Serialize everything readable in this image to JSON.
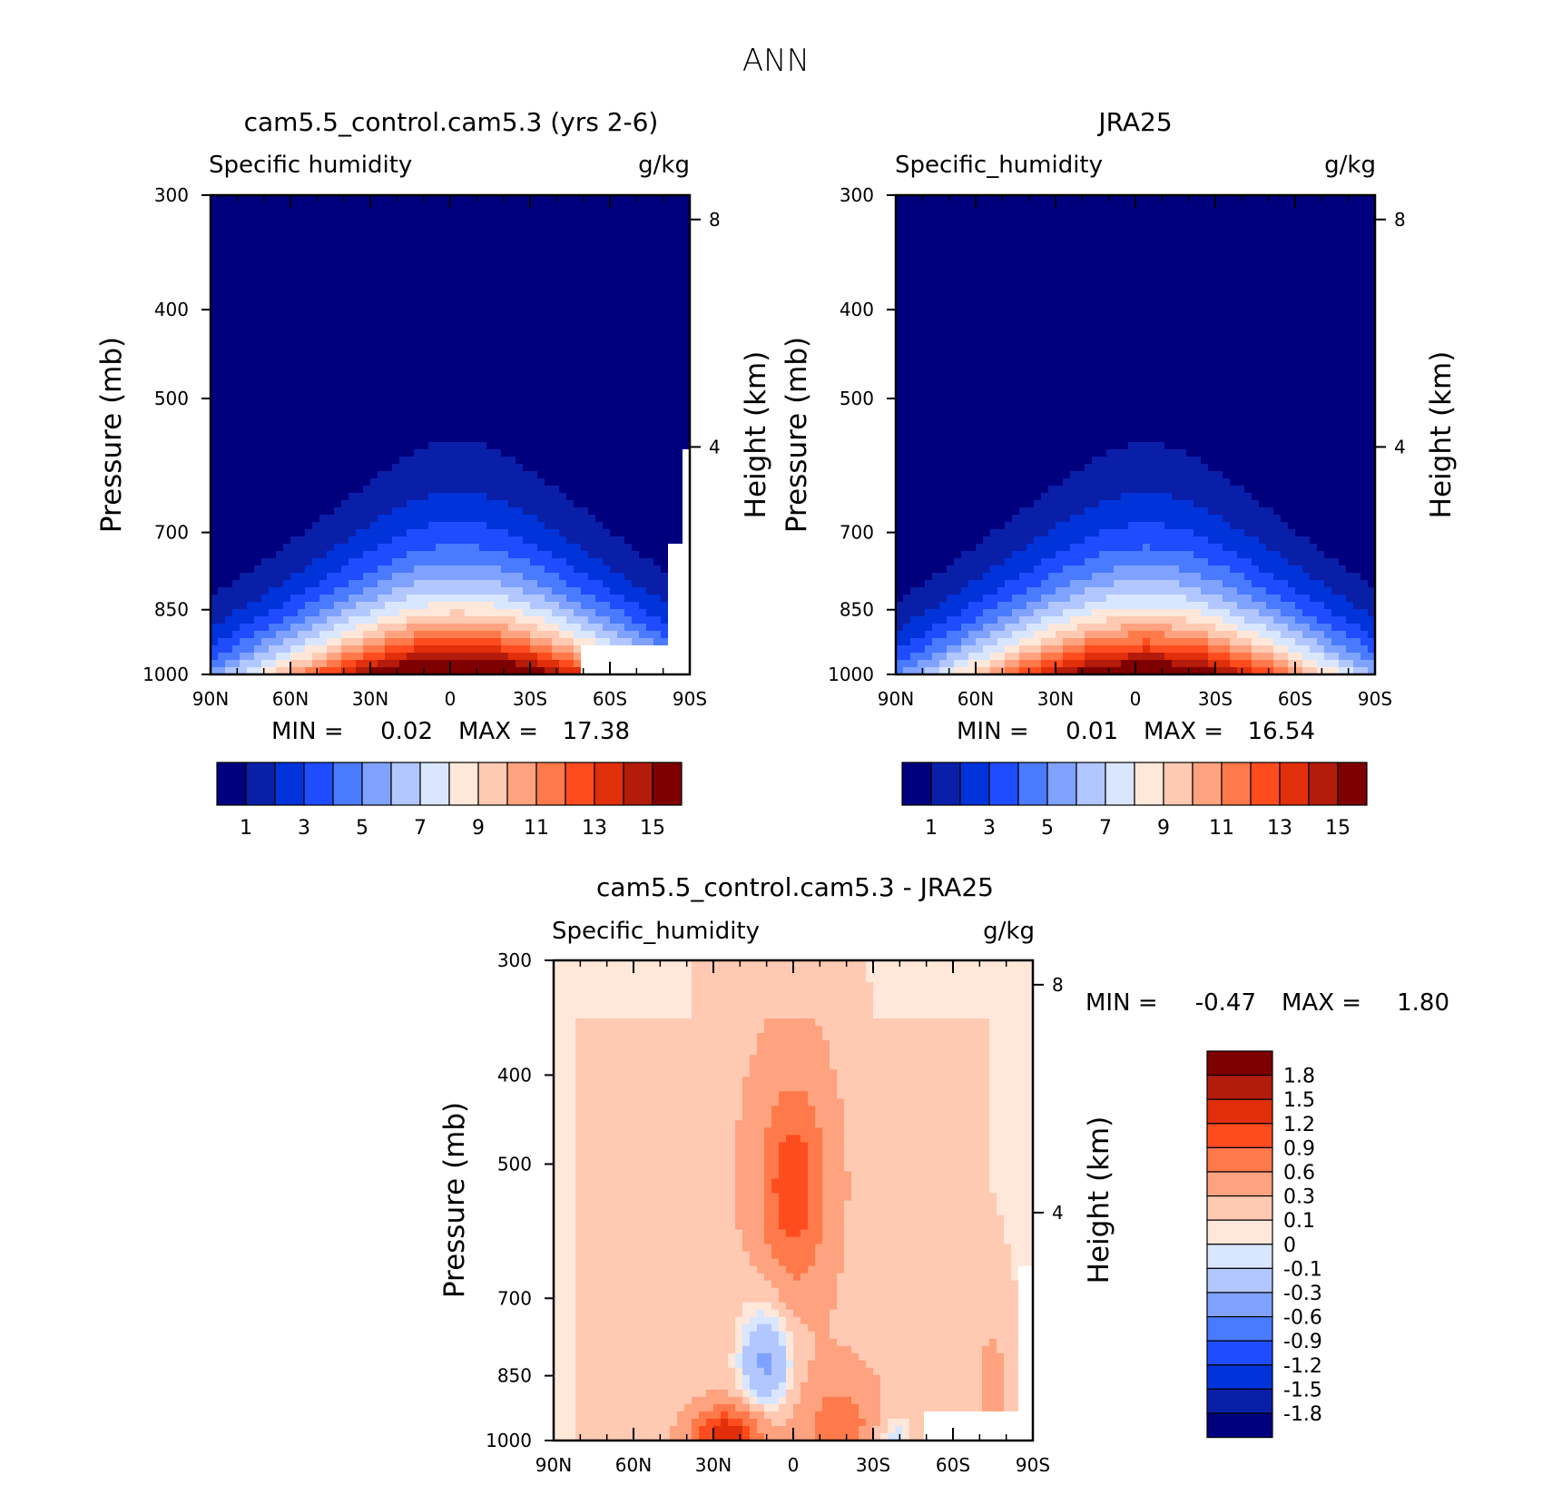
{
  "page_title": "ANN",
  "colors": {
    "humidity_scale": [
      "#00007f",
      "#0a1fa8",
      "#0033d9",
      "#1f4cff",
      "#4a7aff",
      "#7fa2ff",
      "#b2c7ff",
      "#d9e6ff",
      "#ffe8d9",
      "#ffc9b2",
      "#ffa27f",
      "#ff7a4a",
      "#ff4c1f",
      "#e02f0a",
      "#b31b0b",
      "#7f0000"
    ],
    "difference_scale": [
      "#00007f",
      "#0a1fa8",
      "#0033d9",
      "#1f4cff",
      "#4a7aff",
      "#7fa2ff",
      "#b2c7ff",
      "#d9e6ff",
      "#ffe8d9",
      "#ffc9b2",
      "#ffa27f",
      "#ff7a4a",
      "#ff4c1f",
      "#e02f0a",
      "#b31b0b",
      "#7f0000"
    ],
    "missing": "#ffffff"
  },
  "chart_data": [
    {
      "id": "model",
      "type": "contour",
      "title": "cam5.5_control.cam5.3 (yrs 2-6)",
      "variable": "Specific humidity",
      "units": "g/kg",
      "xlabel": "",
      "ylabel": "Pressure (mb)",
      "y2label": "Height (km)",
      "x_ticks": [
        "90N",
        "60N",
        "30N",
        "0",
        "30S",
        "60S",
        "90S"
      ],
      "y_ticks": [
        "300",
        "400",
        "500",
        "700",
        "850",
        "1000"
      ],
      "y_tick_values": [
        300,
        400,
        500,
        700,
        850,
        1000
      ],
      "y2_ticks": [
        "8",
        "4"
      ],
      "ylim": [
        1000,
        300
      ],
      "min_label": "MIN =",
      "min_value": "0.02",
      "max_label": "MAX =",
      "max_value": "17.38",
      "colorbar_labels": [
        "1",
        "3",
        "5",
        "7",
        "9",
        "11",
        "13",
        "15"
      ],
      "contour_levels": [
        1,
        2,
        3,
        4,
        5,
        6,
        7,
        8,
        9,
        10,
        11,
        12,
        13,
        14,
        15
      ],
      "peak_latitude": -3,
      "peak_value": 17.38,
      "note": "moisture peaks near equator at 1000 mb, decreasing with height and latitude; missing data over Antarctic surface below ~900 mb"
    },
    {
      "id": "obs",
      "type": "contour",
      "title": "JRA25",
      "variable": "Specific_humidity",
      "units": "g/kg",
      "xlabel": "",
      "ylabel": "Pressure (mb)",
      "y2label": "Height (km)",
      "x_ticks": [
        "90N",
        "60N",
        "30N",
        "0",
        "30S",
        "60S",
        "90S"
      ],
      "y_ticks": [
        "300",
        "400",
        "500",
        "700",
        "850",
        "1000"
      ],
      "y_tick_values": [
        300,
        400,
        500,
        700,
        850,
        1000
      ],
      "y2_ticks": [
        "8",
        "4"
      ],
      "ylim": [
        1000,
        300
      ],
      "min_label": "MIN =",
      "min_value": "0.01",
      "max_label": "MAX =",
      "max_value": "16.54",
      "colorbar_labels": [
        "1",
        "3",
        "5",
        "7",
        "9",
        "11",
        "13",
        "15"
      ],
      "contour_levels": [
        1,
        2,
        3,
        4,
        5,
        6,
        7,
        8,
        9,
        10,
        11,
        12,
        13,
        14,
        15
      ],
      "peak_latitude": -3,
      "peak_value": 16.54
    },
    {
      "id": "diff",
      "type": "contour",
      "title": "cam5.5_control.cam5.3 - JRA25",
      "variable": "Specific_humidity",
      "units": "g/kg",
      "xlabel": "",
      "ylabel": "Pressure (mb)",
      "y2label": "Height (km)",
      "x_ticks": [
        "90N",
        "60N",
        "30N",
        "0",
        "30S",
        "60S",
        "90S"
      ],
      "y_ticks": [
        "300",
        "400",
        "500",
        "700",
        "850",
        "1000"
      ],
      "y_tick_values": [
        300,
        400,
        500,
        700,
        850,
        1000
      ],
      "y2_ticks": [
        "8",
        "4"
      ],
      "ylim": [
        1000,
        300
      ],
      "min_label": "MIN =",
      "min_value": "-0.47",
      "max_label": "MAX =",
      "max_value": "1.80",
      "colorbar_labels": [
        "1.8",
        "1.5",
        "1.2",
        "0.9",
        "0.6",
        "0.3",
        "0.1",
        "0",
        "-0.1",
        "-0.3",
        "-0.6",
        "-0.9",
        "-1.2",
        "-1.5",
        "-1.8"
      ],
      "contour_levels": [
        -1.8,
        -1.5,
        -1.2,
        -0.9,
        -0.6,
        -0.3,
        -0.1,
        0,
        0.1,
        0.3,
        0.6,
        0.9,
        1.2,
        1.5,
        1.8
      ],
      "features": [
        {
          "desc": "positive maximum",
          "lat": 0,
          "pressure": 530,
          "value": 0.9
        },
        {
          "desc": "positive surface maximum",
          "lat": 25,
          "pressure": 980,
          "value": 1.3
        },
        {
          "desc": "negative minimum",
          "lat": 8,
          "pressure": 830,
          "value": -0.47
        }
      ]
    }
  ]
}
